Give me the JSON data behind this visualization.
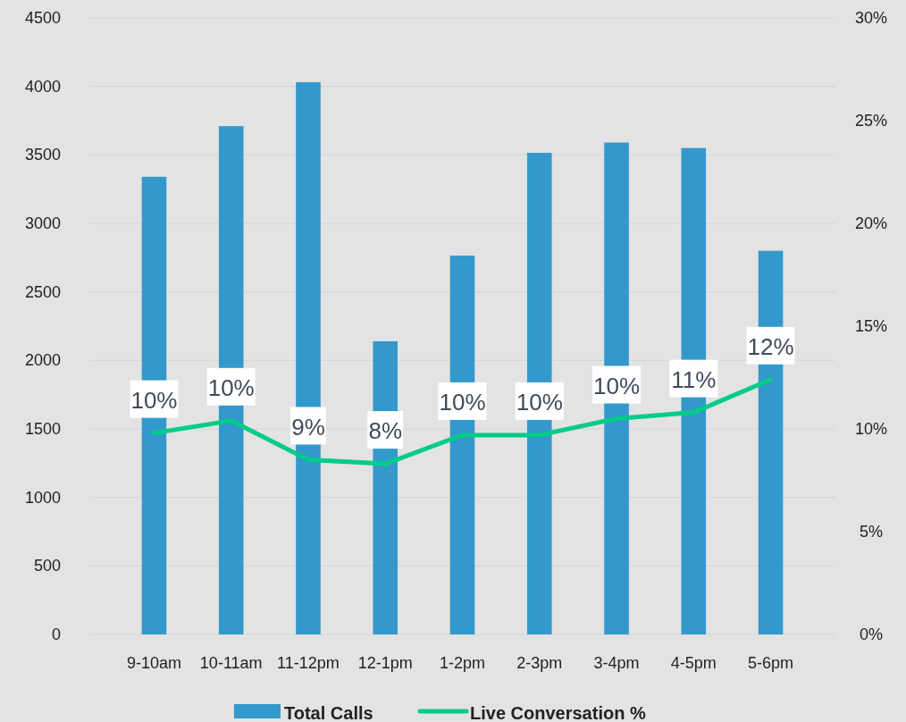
{
  "chart_data": {
    "type": "bar",
    "categories": [
      "9-10am",
      "10-11am",
      "11-12pm",
      "12-1pm",
      "1-2pm",
      "2-3pm",
      "3-4pm",
      "4-5pm",
      "5-6pm"
    ],
    "series": [
      {
        "name": "Total Calls",
        "color": "#3399cc",
        "values": [
          3340,
          3710,
          4030,
          2140,
          2765,
          3515,
          3590,
          3550,
          2800
        ]
      },
      {
        "name": "Live Conversation %",
        "type": "line",
        "axis": "y2",
        "color": "#00cc88",
        "values": [
          9.8,
          10.4,
          8.5,
          8.3,
          9.7,
          9.7,
          10.5,
          10.8,
          12.4
        ],
        "value_labels": [
          "10%",
          "10%",
          "9%",
          "8%",
          "10%",
          "10%",
          "10%",
          "11%",
          "12%"
        ]
      }
    ],
    "ylim": [
      0,
      4500
    ],
    "yticks": [
      0,
      500,
      1000,
      1500,
      2000,
      2500,
      3000,
      3500,
      4000,
      4500
    ],
    "y2lim": [
      0,
      30
    ],
    "y2ticks": [
      {
        "value": 0,
        "label": "0%"
      },
      {
        "value": 5,
        "label": "5%"
      },
      {
        "value": 10,
        "label": "10%"
      },
      {
        "value": 15,
        "label": "15%"
      },
      {
        "value": 20,
        "label": "20%"
      },
      {
        "value": 25,
        "label": "25%"
      },
      {
        "value": 30,
        "label": "30%"
      }
    ],
    "grid": "y",
    "legend": "bottom"
  }
}
